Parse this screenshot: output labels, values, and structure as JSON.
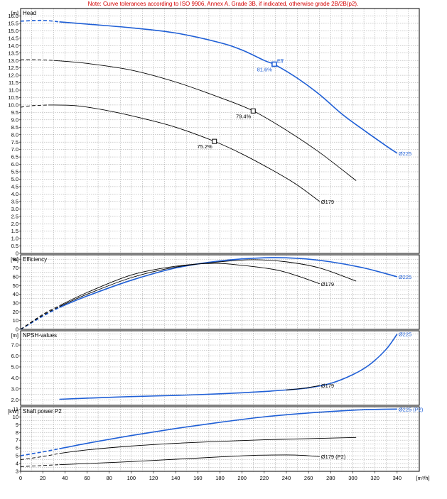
{
  "note": "Note: Curve tolerances according to ISO 9906, Annex A. Grade 3B, if indicated, otherwise grade 2B/2B(p2).",
  "x_unit": "[m³/h]",
  "x_ticks": [
    "0",
    "20",
    "40",
    "60",
    "80",
    "100",
    "120",
    "140",
    "160",
    "180",
    "200",
    "220",
    "240",
    "260",
    "280",
    "300",
    "320",
    "340"
  ],
  "colors": {
    "blue": "#1f5fd6",
    "black": "#000000",
    "grid": "#9a9a9a",
    "note": "#d40000"
  },
  "chart_data": [
    {
      "type": "line",
      "title": "Head",
      "ylabel": "[m]",
      "ylim": [
        0,
        16.5
      ],
      "yticks": [
        "0",
        "0.5",
        "1.0",
        "1.5",
        "2.0",
        "2.5",
        "3.0",
        "3.5",
        "4.0",
        "4.5",
        "5.0",
        "5.5",
        "6.0",
        "6.5",
        "7.0",
        "7.5",
        "8.0",
        "8.5",
        "9.0",
        "9.5",
        "10.0",
        "10.5",
        "11.0",
        "11.5",
        "12.0",
        "12.5",
        "13.0",
        "13.5",
        "14.0",
        "14.5",
        "15.0",
        "15.5",
        "16.0"
      ],
      "series": [
        {
          "name": "Ø225",
          "color": "blue",
          "dashed_x": [
            0,
            35
          ],
          "x": [
            0,
            20,
            35,
            60,
            100,
            140,
            180,
            200,
            220,
            230,
            250,
            270,
            290,
            310,
            330,
            340
          ],
          "y": [
            15.65,
            15.7,
            15.6,
            15.45,
            15.2,
            14.85,
            14.2,
            13.7,
            13.0,
            12.7,
            11.8,
            10.7,
            9.4,
            8.3,
            7.25,
            6.75
          ]
        },
        {
          "name": "",
          "color": "black",
          "dashed_x": [
            0,
            30
          ],
          "x": [
            0,
            15,
            30,
            60,
            100,
            140,
            180,
            210,
            240,
            270,
            303
          ],
          "y": [
            13.05,
            13.05,
            13.0,
            12.8,
            12.35,
            11.55,
            10.5,
            9.6,
            8.3,
            6.8,
            4.9
          ]
        },
        {
          "name": "Ø179",
          "color": "black",
          "dashed_x": [
            0,
            25
          ],
          "x": [
            0,
            10,
            25,
            50,
            80,
            110,
            140,
            175,
            200,
            230,
            250,
            270
          ],
          "y": [
            9.85,
            9.95,
            10.0,
            9.95,
            9.6,
            9.1,
            8.5,
            7.55,
            6.7,
            5.5,
            4.6,
            3.5
          ]
        }
      ],
      "markers": [
        {
          "x": 229,
          "y": 12.75,
          "label": "81.6%",
          "color": "blue",
          "tag": "Eff"
        },
        {
          "x": 210,
          "y": 9.6,
          "label": "79.4%",
          "color": "black"
        },
        {
          "x": 175,
          "y": 7.55,
          "label": "75.2%",
          "color": "black"
        }
      ]
    },
    {
      "type": "line",
      "title": "Efficiency",
      "ylabel": "[%]",
      "ylim": [
        0,
        85
      ],
      "yticks": [
        "0",
        "10",
        "20",
        "30",
        "40",
        "50",
        "60",
        "70",
        "80"
      ],
      "series": [
        {
          "name": "Ø225",
          "color": "blue",
          "dashed_x": [
            0,
            35
          ],
          "x": [
            0,
            20,
            35,
            60,
            100,
            140,
            180,
            220,
            250,
            280,
            310,
            340
          ],
          "y": [
            0,
            15,
            25,
            38,
            56,
            70,
            78,
            81.6,
            81,
            77,
            70,
            60
          ]
        },
        {
          "name": "",
          "color": "black",
          "dashed_x": [
            0,
            35
          ],
          "x": [
            0,
            20,
            35,
            60,
            100,
            140,
            180,
            210,
            240,
            270,
            303
          ],
          "y": [
            0,
            16,
            26,
            40,
            59,
            71,
            77,
            79.4,
            77,
            70,
            55
          ]
        },
        {
          "name": "Ø179",
          "color": "black",
          "dashed_x": [
            0,
            35
          ],
          "x": [
            0,
            20,
            35,
            60,
            100,
            140,
            175,
            200,
            230,
            250,
            270
          ],
          "y": [
            0,
            17,
            27,
            42,
            62,
            72,
            75.2,
            73,
            68,
            61,
            52
          ]
        }
      ]
    },
    {
      "type": "line",
      "title": "NPSH-values",
      "ylabel": "[m]",
      "ylim": [
        1.5,
        8.3
      ],
      "yticks": [
        "2.0",
        "3.0",
        "4.0",
        "5.0",
        "6.0",
        "7.0"
      ],
      "series": [
        {
          "name": "Ø225",
          "color": "blue",
          "x": [
            35,
            60,
            100,
            140,
            180,
            210,
            240,
            260,
            280,
            300,
            315,
            330,
            340
          ],
          "y": [
            2.05,
            2.15,
            2.3,
            2.4,
            2.55,
            2.7,
            2.9,
            3.1,
            3.5,
            4.3,
            5.2,
            6.6,
            8.0
          ]
        },
        {
          "name": "Ø179",
          "color": "black",
          "x": [
            240,
            255,
            270
          ],
          "y": [
            2.9,
            3.05,
            3.3
          ]
        }
      ]
    },
    {
      "type": "line",
      "title": "Shaft power P2",
      "ylabel": "[kW]",
      "ylim": [
        3,
        11.3
      ],
      "yticks": [
        "3",
        "4",
        "5",
        "6",
        "7",
        "8",
        "9",
        "10",
        "11"
      ],
      "series": [
        {
          "name": "Ø225 (P2)",
          "color": "blue",
          "dashed_x": [
            0,
            35
          ],
          "x": [
            0,
            20,
            35,
            60,
            100,
            140,
            180,
            220,
            260,
            300,
            320,
            340
          ],
          "y": [
            5.0,
            5.5,
            5.9,
            6.6,
            7.6,
            8.5,
            9.3,
            10.0,
            10.5,
            10.85,
            10.95,
            11.0
          ]
        },
        {
          "name": "",
          "color": "black",
          "dashed_x": [
            0,
            35
          ],
          "x": [
            0,
            20,
            35,
            60,
            100,
            140,
            180,
            220,
            260,
            303
          ],
          "y": [
            4.5,
            4.9,
            5.3,
            5.75,
            6.25,
            6.6,
            6.85,
            7.05,
            7.2,
            7.35
          ]
        },
        {
          "name": "Ø179 (P2)",
          "color": "black",
          "dashed_x": [
            0,
            35
          ],
          "x": [
            0,
            20,
            35,
            60,
            100,
            140,
            180,
            210,
            240,
            255,
            270
          ],
          "y": [
            3.6,
            3.75,
            3.85,
            4.0,
            4.25,
            4.55,
            4.85,
            5.05,
            5.1,
            5.05,
            4.9
          ]
        }
      ]
    }
  ]
}
